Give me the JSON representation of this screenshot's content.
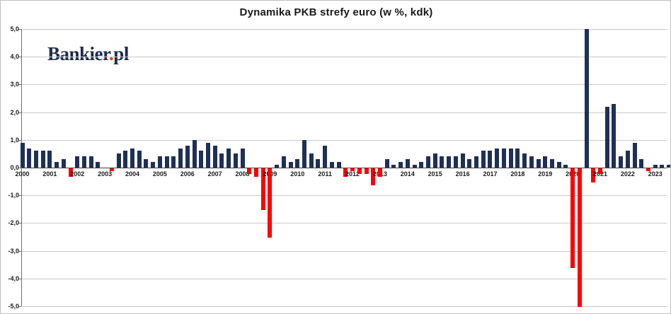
{
  "title": "Dynamika PKB strefy euro (w %, kdk)",
  "logo": {
    "main": "Bankier",
    "dot": ".",
    "suffix": "pl"
  },
  "chart_data": {
    "type": "bar",
    "title": "Dynamika PKB strefy euro (w %, kdk)",
    "subtitle": "",
    "unit": "%, kwartal do kwartalu (kdk)",
    "legend": "none",
    "grid": "horizontal, 1.0 step, light gray",
    "bar_colors": {
      "positive": "#1f3057",
      "negative": "#fd0002"
    },
    "axis_colors": {
      "gridline": "#c9c9c9",
      "zero_line": "#404040",
      "y_axis": "#6e6e6e",
      "text": "#1a1a1a"
    },
    "y_axis": {
      "min": -5.0,
      "max": 5.0,
      "step": 1.0,
      "tick_labels": [
        "5,0",
        "4,0",
        "3,0",
        "2,0",
        "1,0",
        "0,0",
        "-1,0",
        "-2,0",
        "-3,0",
        "-4,0",
        "-5,0"
      ]
    },
    "x_axis": {
      "tick_labels": [
        "2000",
        "2001",
        "2002",
        "2003",
        "2004",
        "2005",
        "2006",
        "2007",
        "2008",
        "2009",
        "2010",
        "2011",
        "2012",
        "2013",
        "2014",
        "2015",
        "2016",
        "2017",
        "2018",
        "2019",
        "2020",
        "2021",
        "2022",
        "2023"
      ],
      "label_position": "under first quarter of each year"
    },
    "series": [
      {
        "year": "2000",
        "values": [
          0.9,
          0.7,
          0.6,
          0.6
        ]
      },
      {
        "year": "2001",
        "values": [
          0.6,
          0.2,
          0.3,
          -0.3
        ]
      },
      {
        "year": "2002",
        "values": [
          0.4,
          0.4,
          0.4,
          0.2
        ]
      },
      {
        "year": "2003",
        "values": [
          0.0,
          -0.1,
          0.5,
          0.6
        ]
      },
      {
        "year": "2004",
        "values": [
          0.7,
          0.6,
          0.3,
          0.2
        ]
      },
      {
        "year": "2005",
        "values": [
          0.4,
          0.4,
          0.4,
          0.7
        ]
      },
      {
        "year": "2006",
        "values": [
          0.8,
          1.0,
          0.6,
          0.9
        ]
      },
      {
        "year": "2007",
        "values": [
          0.8,
          0.5,
          0.7,
          0.5
        ]
      },
      {
        "year": "2008",
        "values": [
          0.7,
          -0.2,
          -0.3,
          -1.5
        ]
      },
      {
        "year": "2009",
        "values": [
          -2.5,
          0.1,
          0.4,
          0.2
        ]
      },
      {
        "year": "2010",
        "values": [
          0.3,
          1.0,
          0.5,
          0.3
        ]
      },
      {
        "year": "2011",
        "values": [
          0.8,
          0.2,
          0.2,
          -0.3
        ]
      },
      {
        "year": "2012",
        "values": [
          -0.1,
          -0.2,
          -0.2,
          -0.6
        ]
      },
      {
        "year": "2013",
        "values": [
          -0.3,
          0.3,
          0.1,
          0.2
        ]
      },
      {
        "year": "2014",
        "values": [
          0.3,
          0.1,
          0.2,
          0.4
        ]
      },
      {
        "year": "2015",
        "values": [
          0.5,
          0.4,
          0.4,
          0.4
        ]
      },
      {
        "year": "2016",
        "values": [
          0.5,
          0.3,
          0.4,
          0.6
        ]
      },
      {
        "year": "2017",
        "values": [
          0.6,
          0.7,
          0.7,
          0.7
        ]
      },
      {
        "year": "2018",
        "values": [
          0.7,
          0.5,
          0.4,
          0.3
        ]
      },
      {
        "year": "2019",
        "values": [
          0.4,
          0.3,
          0.2,
          0.1
        ]
      },
      {
        "year": "2020",
        "values": [
          -3.6,
          -5.0,
          5.0,
          -0.5
        ]
      },
      {
        "year": "2021",
        "values": [
          -0.2,
          2.2,
          2.3,
          0.4
        ]
      },
      {
        "year": "2022",
        "values": [
          0.6,
          0.9,
          0.3,
          -0.1
        ]
      },
      {
        "year": "2023",
        "values": [
          0.1,
          0.1,
          0.1
        ]
      }
    ],
    "clipped_bars": [
      {
        "quarter": "2020 Q2",
        "rendered_value": -5.0,
        "note": "bar clipped at axis minimum"
      },
      {
        "quarter": "2020 Q3",
        "rendered_value": 5.0,
        "note": "bar clipped at axis maximum"
      }
    ]
  }
}
